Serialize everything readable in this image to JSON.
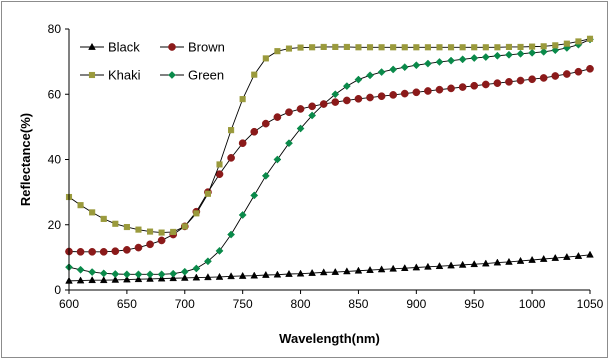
{
  "chart_data": {
    "type": "line",
    "title": "",
    "xlabel": "Wavelength(nm)",
    "ylabel": "Reflectance(%)",
    "xlim": [
      600,
      1050
    ],
    "ylim": [
      0,
      80
    ],
    "x_ticks": [
      600,
      650,
      700,
      750,
      800,
      850,
      900,
      950,
      1000,
      1050
    ],
    "y_ticks": [
      0,
      20,
      40,
      60,
      80
    ],
    "grid": false,
    "legend_position": "top-left",
    "x": [
      600,
      610,
      620,
      630,
      640,
      650,
      660,
      670,
      680,
      690,
      700,
      710,
      720,
      730,
      740,
      750,
      760,
      770,
      780,
      790,
      800,
      810,
      820,
      830,
      840,
      850,
      860,
      870,
      880,
      890,
      900,
      910,
      920,
      930,
      940,
      950,
      960,
      970,
      980,
      990,
      1000,
      1010,
      1020,
      1030,
      1040,
      1050
    ],
    "series": [
      {
        "name": "Black",
        "color": "#000000",
        "marker": "triangle",
        "values": [
          2.8,
          2.9,
          3.0,
          3.0,
          3.1,
          3.2,
          3.3,
          3.4,
          3.5,
          3.6,
          3.7,
          3.8,
          3.9,
          4.0,
          4.2,
          4.3,
          4.4,
          4.6,
          4.7,
          4.9,
          5.0,
          5.2,
          5.4,
          5.5,
          5.7,
          5.9,
          6.1,
          6.3,
          6.5,
          6.7,
          6.9,
          7.1,
          7.3,
          7.5,
          7.7,
          7.9,
          8.1,
          8.4,
          8.6,
          8.9,
          9.2,
          9.5,
          9.8,
          10.1,
          10.4,
          10.8
        ]
      },
      {
        "name": "Brown",
        "color": "#8b1a1a",
        "marker": "circle",
        "values": [
          11.8,
          11.7,
          11.7,
          11.7,
          11.9,
          12.3,
          13.0,
          14.0,
          15.2,
          17.0,
          19.5,
          24.0,
          30.0,
          35.5,
          40.5,
          45.0,
          48.5,
          51.0,
          53.0,
          54.5,
          55.5,
          56.3,
          57.0,
          57.6,
          58.1,
          58.6,
          59.0,
          59.4,
          59.8,
          60.2,
          60.6,
          61.0,
          61.4,
          61.8,
          62.2,
          62.6,
          63.0,
          63.4,
          63.8,
          64.2,
          64.6,
          65.0,
          65.6,
          66.2,
          66.9,
          67.8
        ]
      },
      {
        "name": "Khaki",
        "color": "#9a9a3c",
        "marker": "square",
        "values": [
          28.5,
          26.0,
          23.8,
          21.8,
          20.3,
          19.3,
          18.5,
          17.9,
          17.6,
          17.8,
          19.5,
          23.5,
          29.5,
          38.5,
          49.0,
          58.5,
          66.0,
          71.0,
          73.2,
          74.0,
          74.3,
          74.4,
          74.5,
          74.5,
          74.5,
          74.4,
          74.4,
          74.4,
          74.4,
          74.4,
          74.4,
          74.4,
          74.4,
          74.4,
          74.4,
          74.4,
          74.4,
          74.4,
          74.5,
          74.5,
          74.6,
          74.7,
          75.0,
          75.5,
          76.2,
          77.0
        ]
      },
      {
        "name": "Green",
        "color": "#0a8a4a",
        "marker": "diamond",
        "values": [
          7.0,
          6.2,
          5.5,
          5.1,
          4.9,
          4.8,
          4.8,
          4.8,
          4.8,
          5.0,
          5.6,
          6.6,
          8.8,
          12.0,
          17.0,
          23.0,
          29.0,
          35.0,
          40.0,
          45.0,
          49.5,
          53.5,
          57.0,
          60.0,
          62.5,
          64.5,
          65.8,
          66.8,
          67.6,
          68.3,
          68.9,
          69.4,
          69.9,
          70.3,
          70.7,
          71.1,
          71.4,
          71.8,
          72.1,
          72.4,
          72.7,
          73.0,
          73.5,
          74.2,
          75.2,
          76.8
        ]
      }
    ]
  }
}
